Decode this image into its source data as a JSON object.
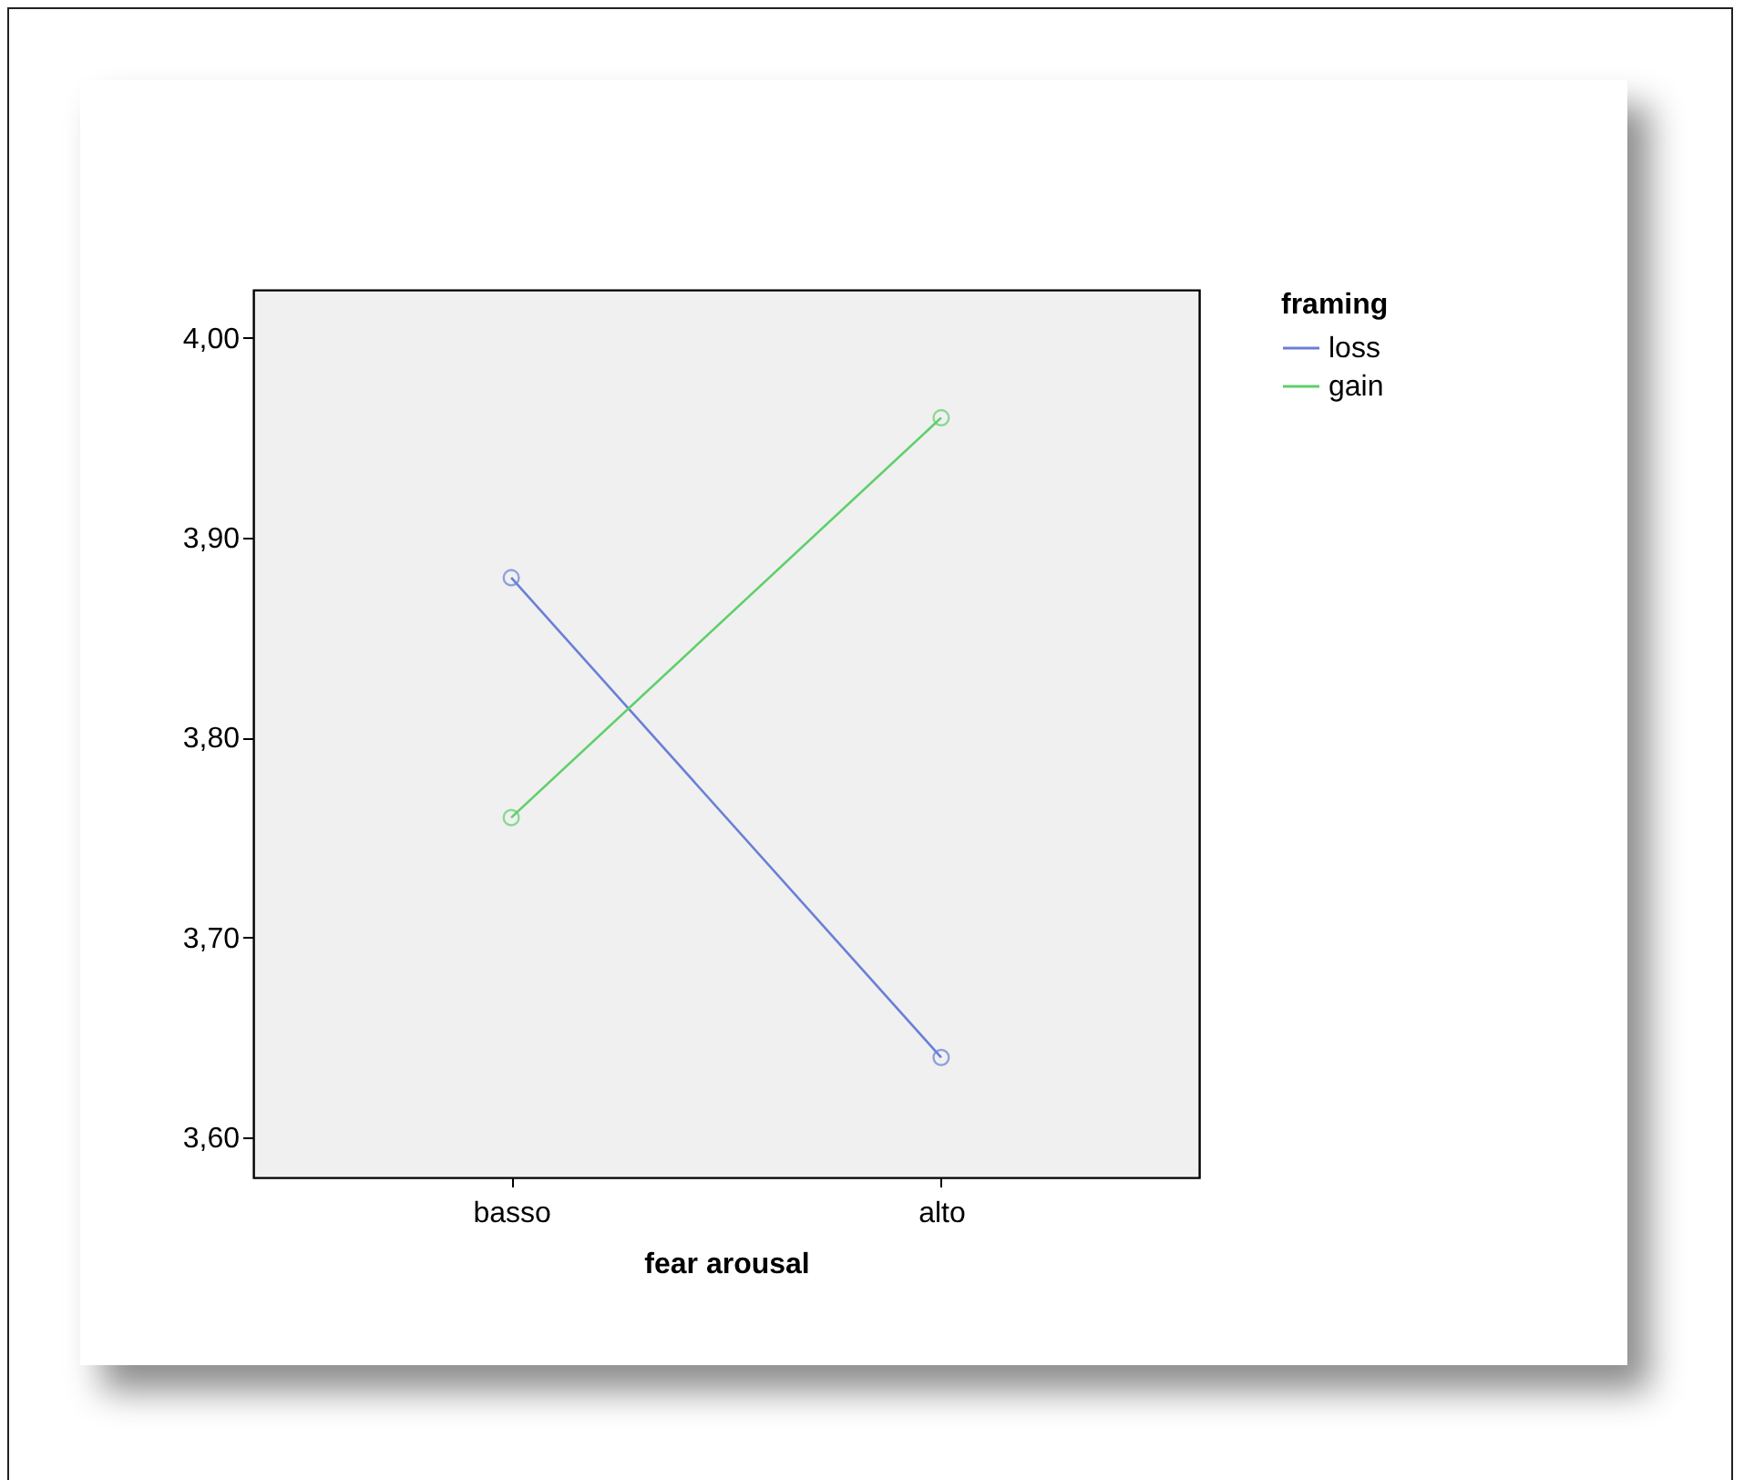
{
  "chart_data": {
    "type": "line",
    "xlabel": "fear arousal",
    "legend_title": "framing",
    "categories": [
      "basso",
      "alto"
    ],
    "series": [
      {
        "name": "loss",
        "color": "#6a7fd6",
        "values": [
          3.88,
          3.64
        ]
      },
      {
        "name": "gain",
        "color": "#5fcf6b",
        "values": [
          3.76,
          3.96
        ]
      }
    ],
    "ylim": [
      3.58,
      4.024
    ],
    "yticks": [
      {
        "value": 3.6,
        "label": "3,60"
      },
      {
        "value": 3.7,
        "label": "3,70"
      },
      {
        "value": 3.8,
        "label": "3,80"
      },
      {
        "value": 3.9,
        "label": "3,90"
      },
      {
        "value": 4.0,
        "label": "4,00"
      }
    ],
    "grid": false,
    "legend": "top right",
    "marker": "circle",
    "line_style": "solid"
  }
}
